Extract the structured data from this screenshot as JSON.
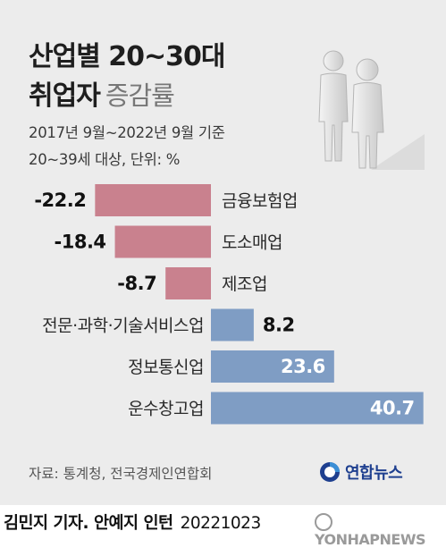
{
  "title": {
    "line1": "산업별 20~30대",
    "line2_main": "취업자",
    "line2_sub": "증감률"
  },
  "notes": {
    "period": "2017년 9월~2022년 9월 기준",
    "scope": "20~39세 대상, 단위: %"
  },
  "colors": {
    "negative": "#c9818e",
    "positive": "#7f9dc4",
    "background": "#ececec"
  },
  "chart_data": {
    "type": "bar",
    "orientation": "horizontal",
    "categories": [
      "금융보험업",
      "도소매업",
      "제조업",
      "전문·과학·기술서비스업",
      "정보통신업",
      "운수창고업"
    ],
    "values": [
      -22.2,
      -18.4,
      -8.7,
      8.2,
      23.6,
      40.7
    ],
    "value_labels": [
      "-22.2",
      "-18.4",
      "-8.7",
      "8.2",
      "23.6",
      "40.7"
    ],
    "title": "산업별 20~30대 취업자 증감률",
    "unit": "%",
    "legend": "none",
    "grid": false
  },
  "source": "자료: 통계청, 전국경제인연합회",
  "logo": {
    "text": "연합뉴스"
  },
  "footer": {
    "credit": "김민지 기자. 안예지 인턴",
    "date": "20221023",
    "watermark": "YONHAPNEWS"
  }
}
